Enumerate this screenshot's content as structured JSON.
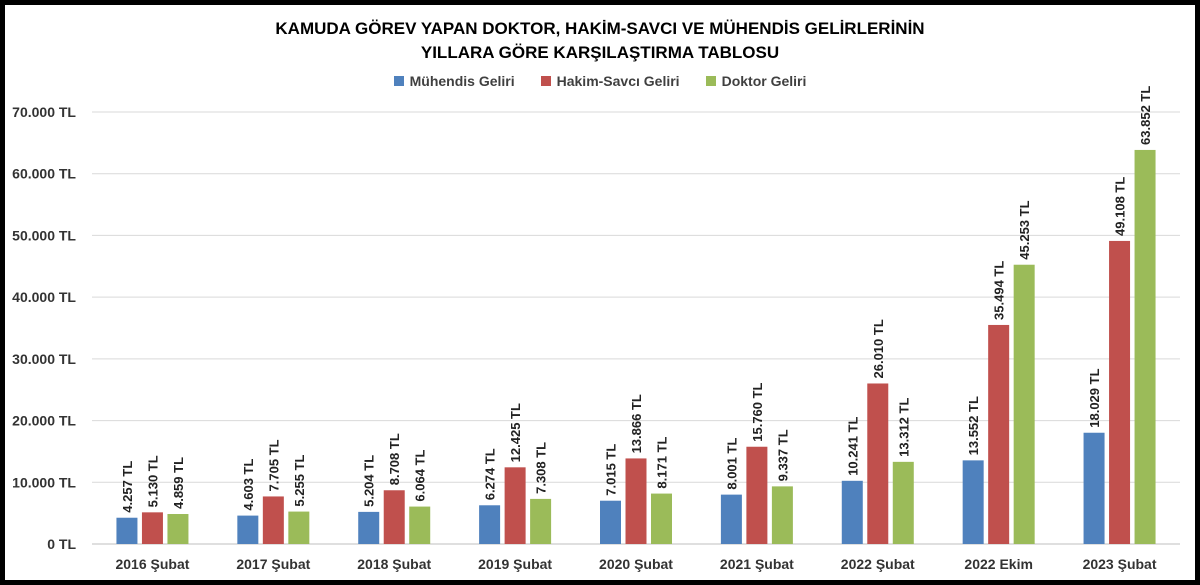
{
  "chart_data": {
    "type": "bar",
    "title_line1": "KAMUDA GÖREV YAPAN DOKTOR, HAKİM-SAVCI VE MÜHENDİS GELİRLERİNİN",
    "title_line2": "YILLARA GÖRE KARŞILAŞTIRMA TABLOSU",
    "legend_position": "top",
    "grid": true,
    "ylim": [
      0,
      70000
    ],
    "y_ticks": [
      0,
      10000,
      20000,
      30000,
      40000,
      50000,
      60000,
      70000
    ],
    "y_tick_labels": [
      "0 TL",
      "10.000 TL",
      "20.000 TL",
      "30.000 TL",
      "40.000 TL",
      "50.000 TL",
      "60.000 TL",
      "70.000 TL"
    ],
    "categories": [
      "2016 Şubat",
      "2017 Şubat",
      "2018 Şubat",
      "2019 Şubat",
      "2020 Şubat",
      "2021 Şubat",
      "2022 Şubat",
      "2022 Ekim",
      "2023 Şubat"
    ],
    "series": [
      {
        "name": "Mühendis Geliri",
        "color": "#4f81bd",
        "values": [
          4257,
          4603,
          5204,
          6274,
          7015,
          8001,
          10241,
          13552,
          18029
        ],
        "labels": [
          "4.257 TL",
          "4.603 TL",
          "5.204 TL",
          "6.274 TL",
          "7.015 TL",
          "8.001 TL",
          "10.241 TL",
          "13.552 TL",
          "18.029 TL"
        ]
      },
      {
        "name": "Hakim-Savcı Geliri",
        "color": "#c0504d",
        "values": [
          5130,
          7705,
          8708,
          12425,
          13866,
          15760,
          26010,
          35494,
          49108
        ],
        "labels": [
          "5.130 TL",
          "7.705 TL",
          "8.708 TL",
          "12.425 TL",
          "13.866 TL",
          "15.760 TL",
          "26.010 TL",
          "35.494 TL",
          "49.108 TL"
        ]
      },
      {
        "name": "Doktor Geliri",
        "color": "#9bbb59",
        "values": [
          4859,
          5255,
          6064,
          7308,
          8171,
          9337,
          13312,
          45253,
          63852
        ],
        "labels": [
          "4.859 TL",
          "5.255 TL",
          "6.064 TL",
          "7.308 TL",
          "8.171 TL",
          "9.337 TL",
          "13.312 TL",
          "45.253 TL",
          "63.852 TL"
        ]
      }
    ]
  }
}
